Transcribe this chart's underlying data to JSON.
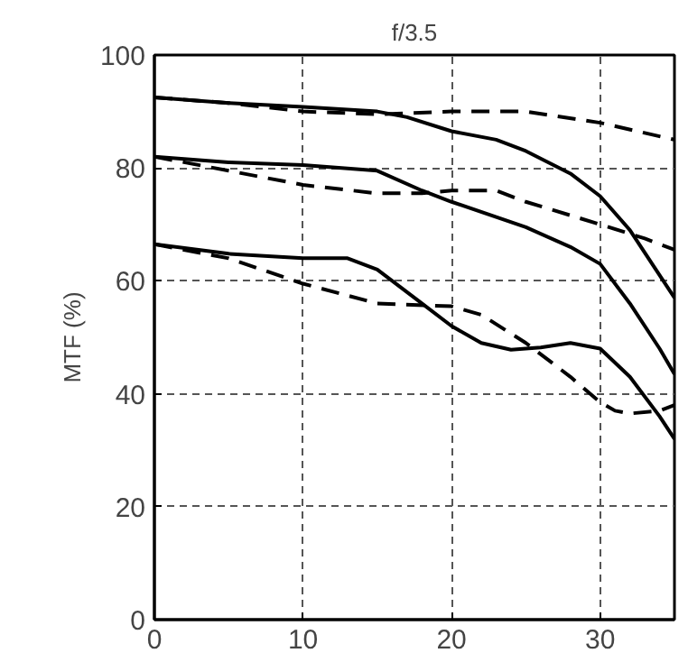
{
  "chart_data": {
    "type": "line",
    "title": "f/3.5",
    "ylabel": "MTF (%)",
    "xlim": [
      0,
      35
    ],
    "ylim": [
      0,
      100
    ],
    "xticks": [
      0,
      10,
      20,
      30
    ],
    "yticks": [
      0,
      20,
      40,
      60,
      80,
      100
    ],
    "grid": true,
    "marker": "none",
    "series": [
      {
        "color": "#000000",
        "line_style": "solid",
        "x": [
          0,
          5,
          10,
          15,
          17,
          20,
          23,
          25,
          28,
          30,
          32,
          34,
          35
        ],
        "values": [
          92.5,
          91.5,
          90.8,
          90,
          89,
          86.5,
          85,
          83,
          79,
          75,
          69,
          61,
          57
        ]
      },
      {
        "color": "#000000",
        "line_style": "dashed",
        "x": [
          0,
          5,
          10,
          15,
          20,
          25,
          30,
          35
        ],
        "values": [
          92.5,
          91.5,
          90,
          89.5,
          90,
          90,
          88,
          85
        ]
      },
      {
        "color": "#000000",
        "line_style": "solid",
        "x": [
          0,
          5,
          10,
          15,
          18,
          20,
          25,
          28,
          30,
          32,
          34,
          35
        ],
        "values": [
          82,
          81,
          80.5,
          79.5,
          76,
          74,
          69.5,
          66,
          63,
          56,
          48,
          43.5
        ]
      },
      {
        "color": "#000000",
        "line_style": "dashed",
        "x": [
          0,
          5,
          10,
          15,
          18,
          20,
          23,
          25,
          30,
          33,
          35
        ],
        "values": [
          82,
          79.5,
          77,
          75.5,
          75.5,
          76,
          76,
          74,
          70,
          67.5,
          65.5
        ]
      },
      {
        "color": "#000000",
        "line_style": "solid",
        "x": [
          0,
          5,
          10,
          13,
          15,
          18,
          20,
          22,
          24,
          26,
          28,
          30,
          32,
          34,
          35
        ],
        "values": [
          66.5,
          64.8,
          64,
          64,
          62,
          56,
          52,
          49,
          47.8,
          48.2,
          49,
          48,
          43,
          36,
          32
        ]
      },
      {
        "color": "#000000",
        "line_style": "dashed",
        "x": [
          0,
          5,
          10,
          15,
          20,
          22,
          25,
          28,
          30,
          31,
          32,
          34,
          35
        ],
        "values": [
          66.5,
          64,
          59.5,
          56,
          55.5,
          54,
          49,
          43,
          38.5,
          37,
          36.5,
          37,
          38
        ]
      }
    ]
  }
}
